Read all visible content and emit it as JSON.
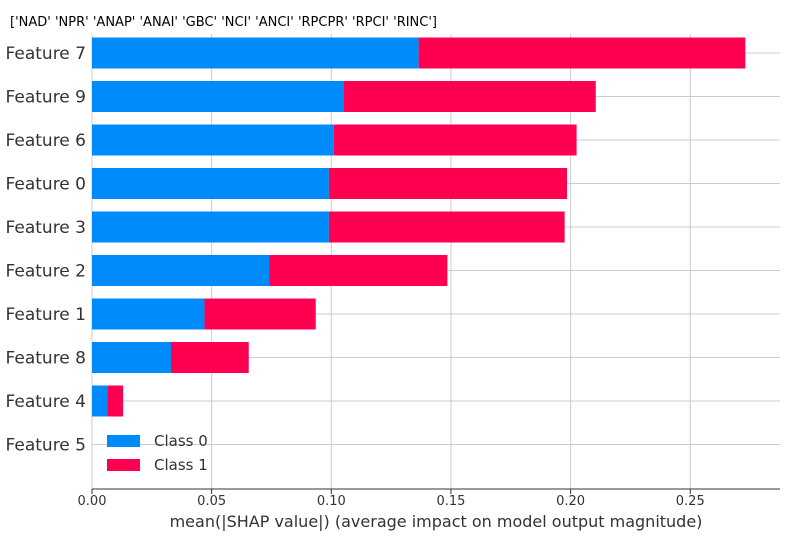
{
  "chart_data": {
    "type": "bar",
    "orientation": "horizontal",
    "stacked": true,
    "title": "['NAD' 'NPR' 'ANAP' 'ANAI' 'GBC' 'NCI' 'ANCI' 'RPCPR' 'RPCI' 'RINC']",
    "xlabel": "mean(|SHAP value|) (average impact on model output magnitude)",
    "ylabel": "",
    "categories": [
      "Feature 7",
      "Feature 9",
      "Feature 6",
      "Feature 0",
      "Feature 3",
      "Feature 2",
      "Feature 1",
      "Feature 8",
      "Feature 4",
      "Feature 5"
    ],
    "series": [
      {
        "name": "Class 0",
        "color": "#008bfb",
        "values": [
          0.1365,
          0.105,
          0.101,
          0.099,
          0.099,
          0.074,
          0.047,
          0.033,
          0.0065,
          0.0
        ]
      },
      {
        "name": "Class 1",
        "color": "#ff0051",
        "values": [
          0.1365,
          0.1055,
          0.1015,
          0.0995,
          0.0985,
          0.0745,
          0.0465,
          0.0325,
          0.0065,
          0.0
        ]
      }
    ],
    "xlim": [
      0,
      0.2875
    ],
    "xticks": [
      0.0,
      0.05,
      0.1,
      0.15,
      0.2,
      0.25
    ],
    "xtick_labels": [
      "0.00",
      "0.05",
      "0.10",
      "0.15",
      "0.20",
      "0.25"
    ],
    "grid": "vertical and horizontal lines, light gray",
    "legend": {
      "position": "lower-left",
      "entries": [
        "Class 0",
        "Class 1"
      ]
    }
  }
}
